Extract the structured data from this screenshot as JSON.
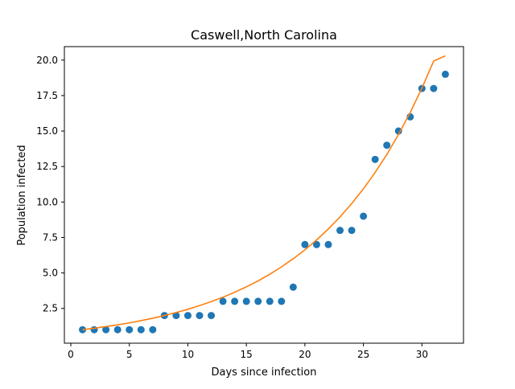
{
  "chart_data": {
    "type": "scatter",
    "title": "Caswell,North Carolina",
    "xlabel": "Days since infection",
    "ylabel": "Population infected",
    "xlim": [
      -0.55,
      33.55
    ],
    "ylim": [
      0.05,
      20.95
    ],
    "xticks": [
      0,
      5,
      10,
      15,
      20,
      25,
      30
    ],
    "xtick_labels": [
      "0",
      "5",
      "10",
      "15",
      "20",
      "25",
      "30"
    ],
    "yticks": [
      2.5,
      5.0,
      7.5,
      10.0,
      12.5,
      15.0,
      17.5,
      20.0
    ],
    "ytick_labels": [
      "2.5",
      "5.0",
      "7.5",
      "10.0",
      "12.5",
      "15.0",
      "17.5",
      "20.0"
    ],
    "grid": false,
    "legend": "none",
    "series": [
      {
        "kind": "scatter",
        "color": "#1f77b4",
        "x": [
          1,
          2,
          3,
          4,
          5,
          6,
          7,
          8,
          9,
          10,
          11,
          12,
          13,
          14,
          15,
          16,
          17,
          18,
          19,
          20,
          21,
          22,
          23,
          24,
          25,
          26,
          27,
          28,
          29,
          30,
          31,
          32
        ],
        "y": [
          1,
          1,
          1,
          1,
          1,
          1,
          1,
          2,
          2,
          2,
          2,
          2,
          3,
          3,
          3,
          3,
          3,
          3,
          4,
          7,
          7,
          7,
          8,
          8,
          9,
          13,
          14,
          15,
          16,
          18,
          18,
          19
        ]
      },
      {
        "kind": "line",
        "color": "#ff7f0e",
        "x": [
          1,
          2,
          3,
          4,
          5,
          6,
          7,
          8,
          9,
          10,
          11,
          12,
          13,
          14,
          15,
          16,
          17,
          18,
          19,
          20,
          21,
          22,
          23,
          24,
          25,
          26,
          27,
          28,
          29,
          30,
          31,
          32
        ],
        "y": [
          1.0,
          1.1,
          1.22,
          1.34,
          1.48,
          1.64,
          1.81,
          2.0,
          2.21,
          2.44,
          2.7,
          2.98,
          3.29,
          3.64,
          4.02,
          4.44,
          4.91,
          5.43,
          6.0,
          6.63,
          7.33,
          8.1,
          8.95,
          9.89,
          10.93,
          12.08,
          13.35,
          14.76,
          16.31,
          18.03,
          19.93,
          20.3
        ]
      }
    ]
  }
}
